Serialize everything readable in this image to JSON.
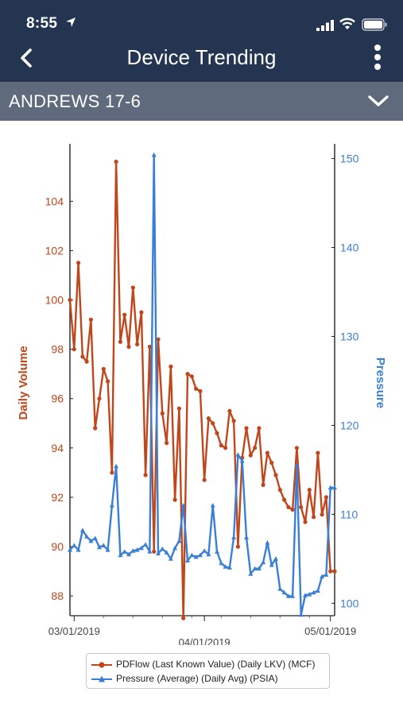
{
  "status_bar": {
    "time": "8:55"
  },
  "header": {
    "back_icon": "chevron-left-icon",
    "title": "Device Trending",
    "menu_icon": "more-vertical-icon"
  },
  "device_selector": {
    "value": "ANDREWS 17-6",
    "icon": "chevron-down-icon"
  },
  "colors": {
    "header_bg": "#243551",
    "device_bar_bg": "#5f6b7c",
    "volume": "#c0461b",
    "pressure": "#3a7fd6"
  },
  "chart_data": {
    "type": "line",
    "x_ticks": [
      "03/01/2019",
      "04/01/2019",
      "05/01/2019"
    ],
    "x_range": [
      "2019-02-28",
      "2019-05-02"
    ],
    "y_left": {
      "label": "Daily Volume",
      "range": [
        87.2,
        106.2
      ],
      "ticks": [
        88,
        90,
        92,
        94,
        96,
        98,
        100,
        102,
        104
      ]
    },
    "y_right": {
      "label": "Pressure",
      "range": [
        98.6,
        151.3
      ],
      "ticks": [
        100,
        110,
        120,
        130,
        140,
        150
      ]
    },
    "legend_position": "bottom",
    "series": [
      {
        "name": "PDFlow (Last Known Value) (Daily LKV) (MCF)",
        "axis": "left",
        "x": [
          "2019-02-28",
          "2019-03-01",
          "2019-03-02",
          "2019-03-03",
          "2019-03-04",
          "2019-03-05",
          "2019-03-06",
          "2019-03-07",
          "2019-03-08",
          "2019-03-09",
          "2019-03-10",
          "2019-03-11",
          "2019-03-12",
          "2019-03-13",
          "2019-03-14",
          "2019-03-15",
          "2019-03-16",
          "2019-03-17",
          "2019-03-18",
          "2019-03-19",
          "2019-03-20",
          "2019-03-21",
          "2019-03-22",
          "2019-03-23",
          "2019-03-24",
          "2019-03-25",
          "2019-03-26",
          "2019-03-27",
          "2019-03-28",
          "2019-03-29",
          "2019-03-30",
          "2019-03-31",
          "2019-04-01",
          "2019-04-02",
          "2019-04-03",
          "2019-04-04",
          "2019-04-05",
          "2019-04-06",
          "2019-04-07",
          "2019-04-08",
          "2019-04-09",
          "2019-04-10",
          "2019-04-11",
          "2019-04-12",
          "2019-04-13",
          "2019-04-14",
          "2019-04-15",
          "2019-04-16",
          "2019-04-17",
          "2019-04-18",
          "2019-04-19",
          "2019-04-20",
          "2019-04-21",
          "2019-04-22",
          "2019-04-23",
          "2019-04-24",
          "2019-04-25",
          "2019-04-26",
          "2019-04-27",
          "2019-04-28",
          "2019-04-29",
          "2019-04-30",
          "2019-05-01",
          "2019-05-02"
        ],
        "values": [
          100.0,
          98.0,
          101.5,
          97.7,
          97.5,
          99.2,
          94.8,
          96.0,
          97.2,
          96.7,
          93.0,
          105.6,
          98.3,
          99.4,
          98.1,
          100.5,
          98.2,
          99.5,
          92.9,
          98.1,
          89.8,
          98.4,
          95.4,
          94.2,
          97.3,
          91.9,
          95.6,
          87.1,
          97.0,
          96.9,
          96.4,
          96.3,
          92.7,
          95.2,
          95.0,
          94.6,
          94.1,
          94.0,
          95.5,
          95.1,
          90.0,
          93.6,
          94.8,
          93.7,
          94.0,
          94.8,
          92.5,
          93.8,
          93.4,
          92.9,
          92.3,
          91.9,
          91.6,
          91.5,
          94.0,
          91.6,
          91.0,
          92.3,
          91.2,
          93.8,
          91.3,
          92.0,
          89.0,
          89.0
        ]
      },
      {
        "name": "Pressure (Average) (Daily Avg) (PSIA)",
        "axis": "right",
        "x": [
          "2019-02-28",
          "2019-03-01",
          "2019-03-02",
          "2019-03-03",
          "2019-03-04",
          "2019-03-05",
          "2019-03-06",
          "2019-03-07",
          "2019-03-08",
          "2019-03-09",
          "2019-03-10",
          "2019-03-11",
          "2019-03-12",
          "2019-03-13",
          "2019-03-14",
          "2019-03-15",
          "2019-03-16",
          "2019-03-17",
          "2019-03-18",
          "2019-03-19",
          "2019-03-20",
          "2019-03-21",
          "2019-03-22",
          "2019-03-23",
          "2019-03-24",
          "2019-03-25",
          "2019-03-26",
          "2019-03-27",
          "2019-03-28",
          "2019-03-29",
          "2019-03-30",
          "2019-03-31",
          "2019-04-01",
          "2019-04-02",
          "2019-04-03",
          "2019-04-04",
          "2019-04-05",
          "2019-04-06",
          "2019-04-07",
          "2019-04-08",
          "2019-04-09",
          "2019-04-10",
          "2019-04-11",
          "2019-04-12",
          "2019-04-13",
          "2019-04-14",
          "2019-04-15",
          "2019-04-16",
          "2019-04-17",
          "2019-04-18",
          "2019-04-19",
          "2019-04-20",
          "2019-04-21",
          "2019-04-22",
          "2019-04-23",
          "2019-04-24",
          "2019-04-25",
          "2019-04-26",
          "2019-04-27",
          "2019-04-28",
          "2019-04-29",
          "2019-04-30",
          "2019-05-01",
          "2019-05-02"
        ],
        "values": [
          106.0,
          106.5,
          106.0,
          108.2,
          107.5,
          107.0,
          107.3,
          106.3,
          106.5,
          106.0,
          111.0,
          115.4,
          105.4,
          105.8,
          105.5,
          105.9,
          106.0,
          106.2,
          106.6,
          105.8,
          150.4,
          105.6,
          106.1,
          105.7,
          105.0,
          106.2,
          107.0,
          111.0,
          104.8,
          105.4,
          105.2,
          105.4,
          105.9,
          105.5,
          111.0,
          105.8,
          104.5,
          104.1,
          104.0,
          107.4,
          116.7,
          116.0,
          107.4,
          103.3,
          103.9,
          103.9,
          104.6,
          106.8,
          104.3,
          105.0,
          101.6,
          101.2,
          100.8,
          100.8,
          115.5,
          98.7,
          100.9,
          101.0,
          101.2,
          101.4,
          103.0,
          103.2,
          113.0,
          113.0
        ]
      }
    ]
  }
}
